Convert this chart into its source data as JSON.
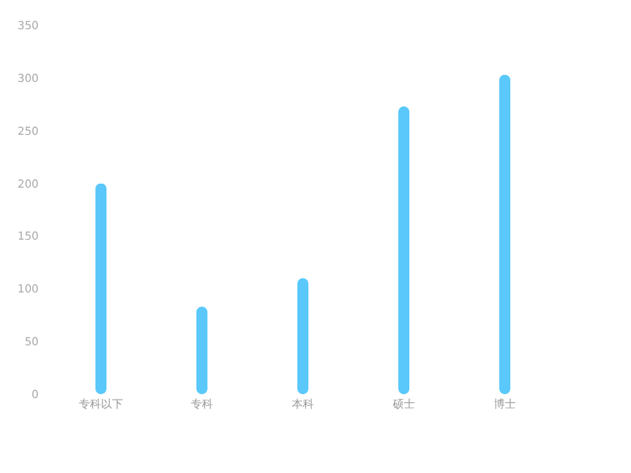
{
  "chart_data": {
    "type": "bar",
    "categories": [
      "专科以下",
      "专科",
      "本科",
      "硕士",
      "博士"
    ],
    "values": [
      200,
      83,
      110,
      273,
      303
    ],
    "color": "#5ac8fa",
    "ylim": [
      0,
      350
    ],
    "yticks": [
      0,
      50,
      100,
      150,
      200,
      250,
      300,
      350
    ],
    "grid": false
  }
}
